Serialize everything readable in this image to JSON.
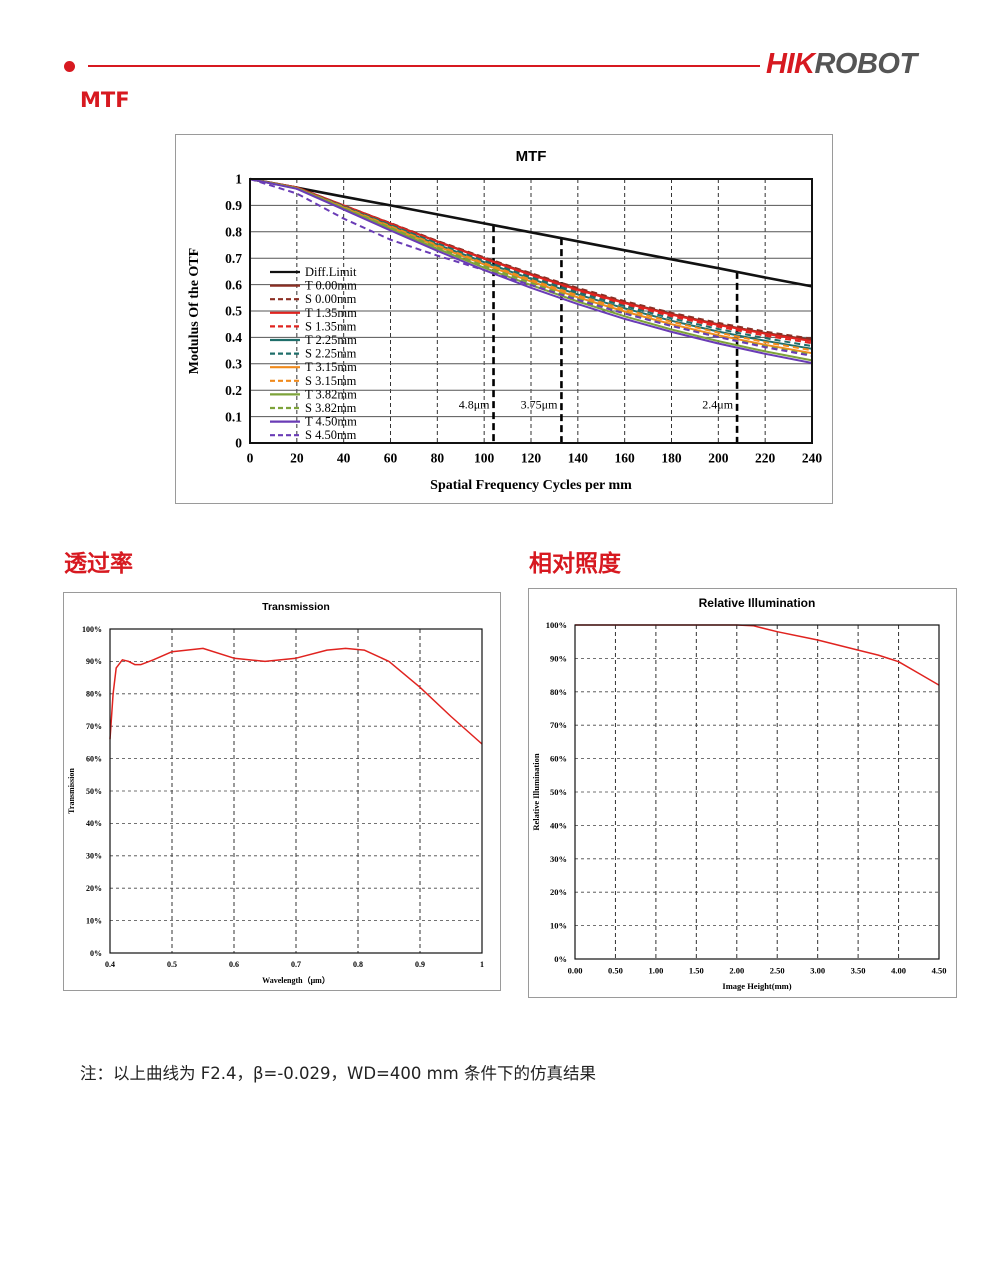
{
  "header": {
    "brand_part1": "HIK",
    "brand_part2": "ROBOT"
  },
  "sections": {
    "mtf_title": "MTF",
    "transmission_title": "透过率",
    "illumination_title": "相对照度"
  },
  "note": "注：以上曲线为 F2.4，β=-0.029，WD=400 mm 条件下的仿真结果",
  "colors": {
    "brand_red": "#d71920",
    "curve_red": "#e0231f"
  },
  "chart_data": [
    {
      "id": "mtf",
      "type": "line",
      "title": "MTF",
      "xlabel": "Spatial Frequency Cycles per mm",
      "ylabel": "Modulus Of the OTF",
      "xlim": [
        0,
        240
      ],
      "ylim": [
        0,
        1
      ],
      "xticks": [
        0,
        20,
        40,
        60,
        80,
        100,
        120,
        140,
        160,
        180,
        200,
        220,
        240
      ],
      "yticks": [
        0,
        0.1,
        0.2,
        0.3,
        0.4,
        0.5,
        0.6,
        0.7,
        0.8,
        0.9,
        1
      ],
      "ytick_labels": [
        "0",
        "0.1",
        "0.2",
        "0.3",
        "0.4",
        "0.5",
        "0.6",
        "0.7",
        "0.8",
        "0.9",
        "1"
      ],
      "grid": "dashed vertical and solid horizontal",
      "legend_position": "left-middle",
      "markers": [
        {
          "x": 104,
          "label": "4.8μm"
        },
        {
          "x": 133,
          "label": "3.75μm"
        },
        {
          "x": 208,
          "label": "2.4μm"
        }
      ],
      "x": [
        0,
        20,
        40,
        60,
        80,
        100,
        120,
        140,
        160,
        180,
        200,
        220,
        240
      ],
      "series": [
        {
          "name": "Diff.Limit",
          "color": "#111111",
          "dash": false,
          "values": [
            1.0,
            0.967,
            0.933,
            0.9,
            0.866,
            0.832,
            0.798,
            0.764,
            0.73,
            0.696,
            0.662,
            0.627,
            0.593
          ]
        },
        {
          "name": "T 0.00mm",
          "color": "#8b2e23",
          "dash": false,
          "values": [
            1.0,
            0.968,
            0.9,
            0.832,
            0.764,
            0.7,
            0.64,
            0.583,
            0.533,
            0.489,
            0.45,
            0.417,
            0.39
          ]
        },
        {
          "name": "S 0.00mm",
          "color": "#8b2e23",
          "dash": true,
          "values": [
            1.0,
            0.968,
            0.9,
            0.833,
            0.766,
            0.703,
            0.643,
            0.587,
            0.537,
            0.493,
            0.455,
            0.422,
            0.395
          ]
        },
        {
          "name": "T 1.35mm",
          "color": "#e0231f",
          "dash": false,
          "values": [
            1.0,
            0.968,
            0.9,
            0.831,
            0.762,
            0.698,
            0.637,
            0.58,
            0.53,
            0.486,
            0.447,
            0.414,
            0.386
          ]
        },
        {
          "name": "S 1.35mm",
          "color": "#e0231f",
          "dash": true,
          "values": [
            1.0,
            0.967,
            0.898,
            0.828,
            0.759,
            0.694,
            0.633,
            0.576,
            0.525,
            0.48,
            0.441,
            0.407,
            0.378
          ]
        },
        {
          "name": "T 2.25mm",
          "color": "#1f6e6a",
          "dash": false,
          "values": [
            1.0,
            0.966,
            0.895,
            0.823,
            0.752,
            0.685,
            0.622,
            0.563,
            0.51,
            0.463,
            0.422,
            0.387,
            0.357
          ]
        },
        {
          "name": "S 2.25mm",
          "color": "#1f6e6a",
          "dash": true,
          "values": [
            1.0,
            0.966,
            0.897,
            0.826,
            0.756,
            0.69,
            0.628,
            0.57,
            0.518,
            0.472,
            0.432,
            0.397,
            0.367
          ]
        },
        {
          "name": "T 3.15mm",
          "color": "#f08a1c",
          "dash": false,
          "values": [
            1.0,
            0.965,
            0.892,
            0.818,
            0.745,
            0.676,
            0.612,
            0.552,
            0.498,
            0.45,
            0.408,
            0.372,
            0.34
          ]
        },
        {
          "name": "S 3.15mm",
          "color": "#f08a1c",
          "dash": true,
          "values": [
            1.0,
            0.966,
            0.894,
            0.821,
            0.749,
            0.681,
            0.618,
            0.559,
            0.506,
            0.459,
            0.418,
            0.382,
            0.351
          ]
        },
        {
          "name": "T 3.82mm",
          "color": "#7da33a",
          "dash": false,
          "values": [
            1.0,
            0.964,
            0.888,
            0.811,
            0.736,
            0.664,
            0.598,
            0.536,
            0.48,
            0.43,
            0.386,
            0.347,
            0.313
          ]
        },
        {
          "name": "S 3.82mm",
          "color": "#7da33a",
          "dash": true,
          "values": [
            1.0,
            0.965,
            0.89,
            0.815,
            0.741,
            0.671,
            0.606,
            0.546,
            0.492,
            0.444,
            0.402,
            0.366,
            0.334
          ]
        },
        {
          "name": "T 4.50mm",
          "color": "#6a3cb6",
          "dash": false,
          "values": [
            1.0,
            0.963,
            0.884,
            0.805,
            0.728,
            0.655,
            0.588,
            0.526,
            0.47,
            0.421,
            0.377,
            0.338,
            0.303
          ]
        },
        {
          "name": "S 4.50mm",
          "color": "#6a3cb6",
          "dash": true,
          "values": [
            1.0,
            0.945,
            0.85,
            0.77,
            0.71,
            0.655,
            0.598,
            0.542,
            0.49,
            0.443,
            0.401,
            0.363,
            0.33
          ]
        }
      ]
    },
    {
      "id": "transmission",
      "type": "line",
      "title": "Transmission",
      "xlabel": "Wavelength（μm）",
      "ylabel": "Transmission",
      "xlim": [
        0.4,
        1
      ],
      "ylim": [
        0,
        100
      ],
      "xticks": [
        0.4,
        0.5,
        0.6,
        0.7,
        0.8,
        0.9,
        1
      ],
      "xtick_labels": [
        "0.4",
        "0.5",
        "0.6",
        "0.7",
        "0.8",
        "0.9",
        "1"
      ],
      "yticks": [
        0,
        10,
        20,
        30,
        40,
        50,
        60,
        70,
        80,
        90,
        100
      ],
      "ytick_labels": [
        "0%",
        "10%",
        "20%",
        "30%",
        "40%",
        "50%",
        "60%",
        "70%",
        "80%",
        "90%",
        "100%"
      ],
      "grid": "dashed",
      "series": [
        {
          "color": "#e0231f",
          "x": [
            0.4,
            0.405,
            0.41,
            0.42,
            0.43,
            0.44,
            0.45,
            0.47,
            0.5,
            0.55,
            0.6,
            0.65,
            0.7,
            0.75,
            0.78,
            0.81,
            0.85,
            0.9,
            0.95,
            1.0
          ],
          "values": [
            66,
            80,
            88,
            90.5,
            90,
            89,
            89,
            90.5,
            93,
            94,
            91,
            90,
            91,
            93.5,
            94,
            93.5,
            90,
            82,
            73,
            64.5
          ]
        }
      ]
    },
    {
      "id": "relative_illumination",
      "type": "line",
      "title": "Relative Illumination",
      "xlabel": "Image Height(mm)",
      "ylabel": "Relative Illumination",
      "xlim": [
        0,
        4.5
      ],
      "ylim": [
        0,
        100
      ],
      "xticks": [
        0,
        0.5,
        1,
        1.5,
        2,
        2.5,
        3,
        3.5,
        4,
        4.5
      ],
      "xtick_labels": [
        "0.00",
        "0.50",
        "1.00",
        "1.50",
        "2.00",
        "2.50",
        "3.00",
        "3.50",
        "4.00",
        "4.50"
      ],
      "yticks": [
        0,
        10,
        20,
        30,
        40,
        50,
        60,
        70,
        80,
        90,
        100
      ],
      "ytick_labels": [
        "0%",
        "10%",
        "20%",
        "30%",
        "40%",
        "50%",
        "60%",
        "70%",
        "80%",
        "90%",
        "100%"
      ],
      "grid": "dashed",
      "series": [
        {
          "color": "#e0231f",
          "x": [
            0,
            0.5,
            1.0,
            1.5,
            2.0,
            2.2,
            2.5,
            3.0,
            3.5,
            3.75,
            4.0,
            4.25,
            4.5
          ],
          "values": [
            100,
            100,
            100,
            100,
            100,
            99.8,
            98,
            95.5,
            92.5,
            91,
            89,
            85.5,
            82
          ]
        }
      ]
    }
  ]
}
